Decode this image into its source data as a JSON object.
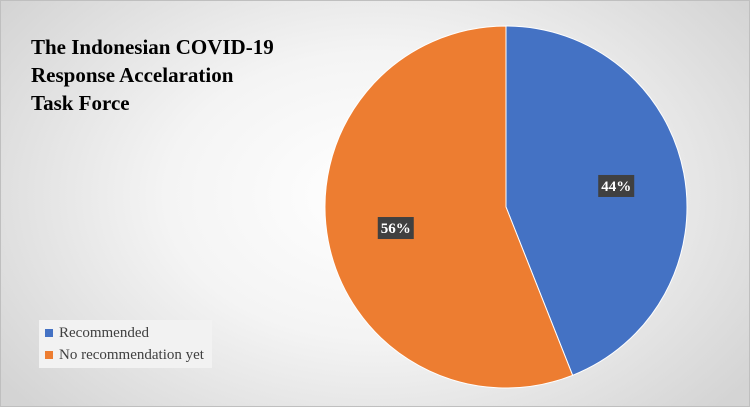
{
  "chart_data": {
    "type": "pie",
    "title": "The Indonesian COVID-19 Response Accelaration Task Force",
    "title_lines": [
      "The Indonesian COVID-19",
      "Response Accelaration",
      "Task Force"
    ],
    "slices": [
      {
        "label": "Recommended",
        "value": 44,
        "display": "44%",
        "color": "#4472C4"
      },
      {
        "label": "No recommendation yet",
        "value": 56,
        "display": "56%",
        "color": "#ED7D31"
      }
    ],
    "start_angle_deg": 0,
    "direction": "clockwise",
    "legend_position": "bottom-left",
    "data_label_style": "dark-box"
  }
}
